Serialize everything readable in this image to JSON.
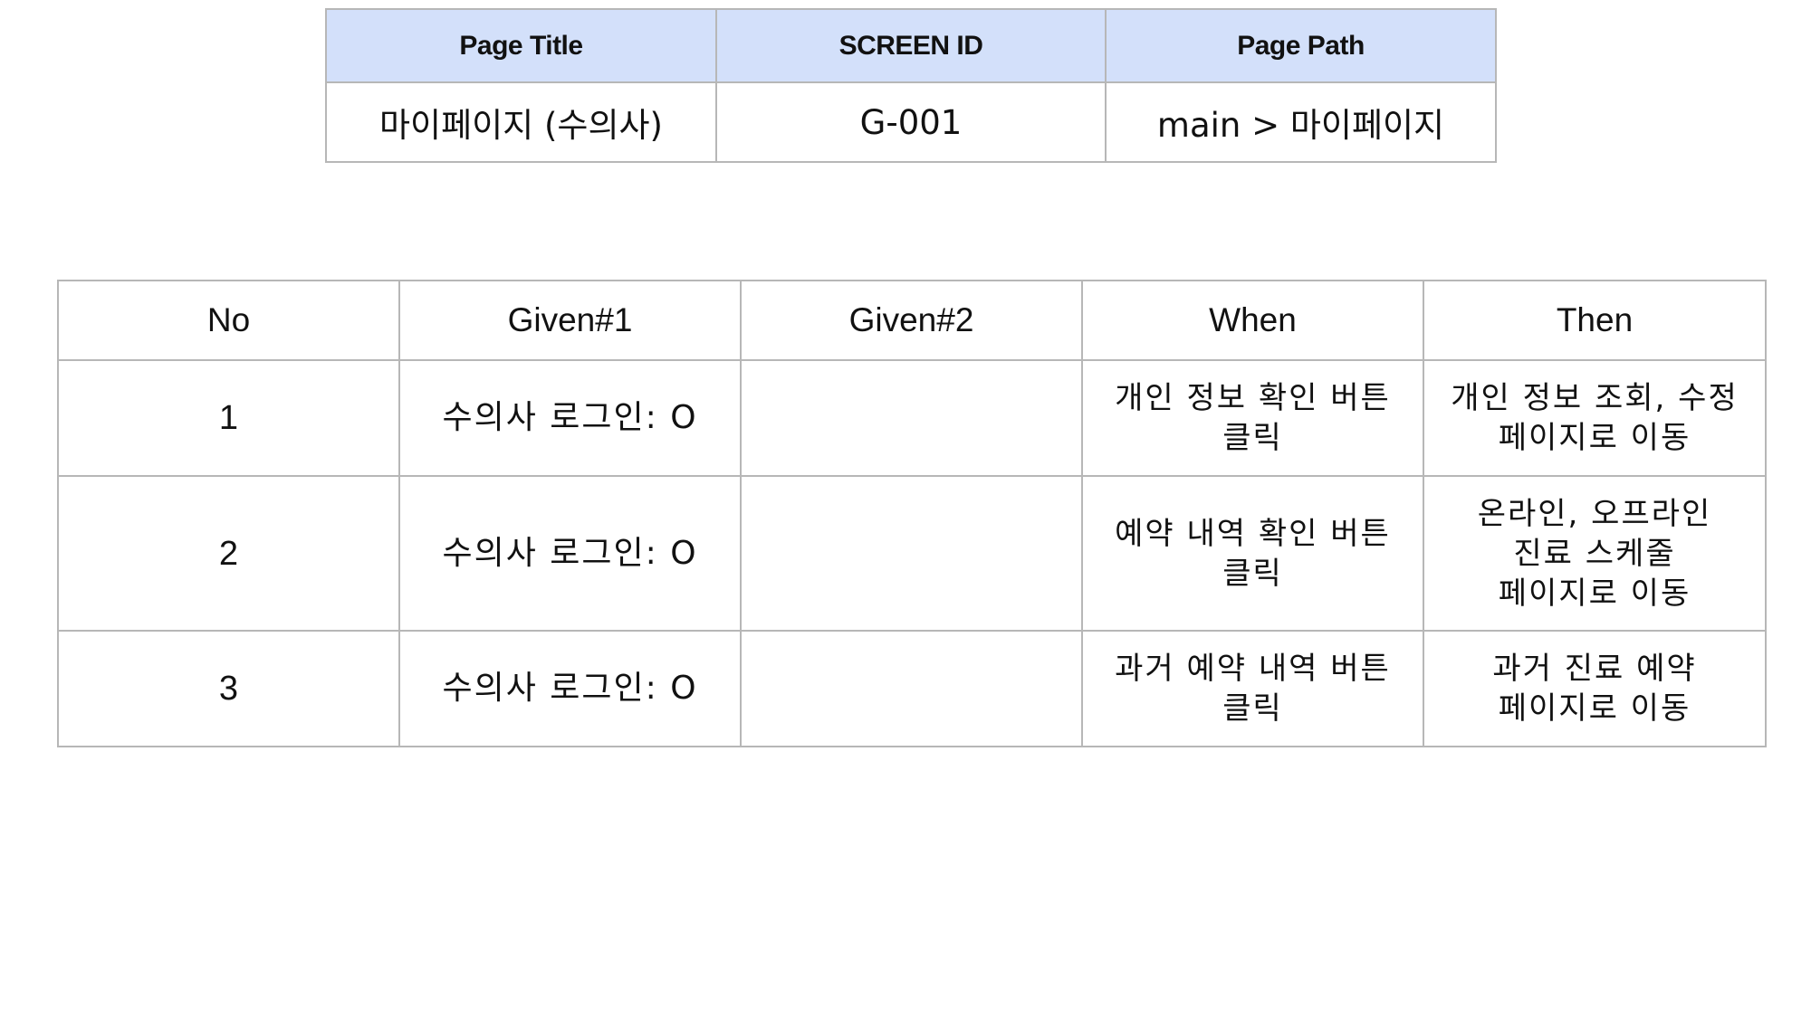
{
  "page_info": {
    "headers": {
      "page_title": "Page Title",
      "screen_id": "SCREEN ID",
      "page_path": "Page Path"
    },
    "values": {
      "page_title": "마이페이지 (수의사)",
      "screen_id": "G-001",
      "page_path": "main > 마이페이지"
    }
  },
  "scenarios": {
    "headers": {
      "no": "No",
      "given1": "Given#1",
      "given2": "Given#2",
      "when": "When",
      "then": "Then"
    },
    "rows": [
      {
        "no": "1",
        "given1": "수의사 로그인: O",
        "given2": "",
        "when": "개인 정보 확인 버튼\n클릭",
        "then": "개인 정보 조회, 수정\n페이지로 이동"
      },
      {
        "no": "2",
        "given1": "수의사 로그인: O",
        "given2": "",
        "when": "예약 내역 확인 버튼\n클릭",
        "then": "온라인, 오프라인\n진료 스케줄\n페이지로 이동"
      },
      {
        "no": "3",
        "given1": "수의사 로그인: O",
        "given2": "",
        "when": "과거 예약 내역 버튼\n클릭",
        "then": "과거 진료 예약\n페이지로 이동"
      }
    ]
  }
}
